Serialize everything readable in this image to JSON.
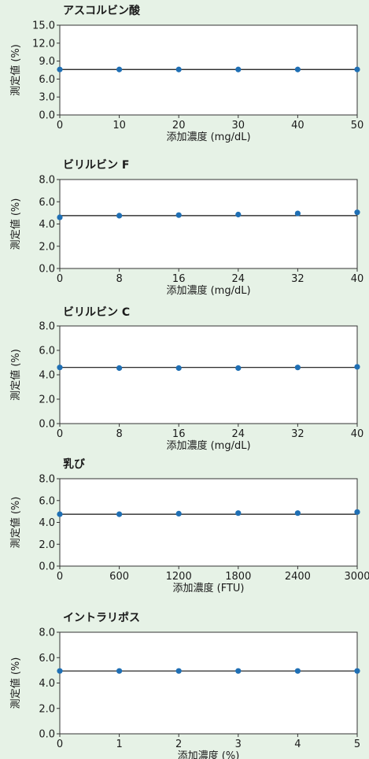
{
  "chart_data": [
    {
      "type": "scatter",
      "title": "アスコルビン酸",
      "xlabel": "添加濃度 (mg/dL)",
      "ylabel": "測定値 (%)",
      "x": [
        0,
        10,
        20,
        30,
        40,
        50
      ],
      "y": [
        7.6,
        7.6,
        7.6,
        7.6,
        7.6,
        7.6
      ],
      "reference": 7.6,
      "xlim": [
        0,
        50
      ],
      "ylim": [
        0,
        15
      ],
      "xticks": [
        0,
        10,
        20,
        30,
        40,
        50
      ],
      "yticks": [
        0,
        3,
        6,
        9,
        12,
        15
      ],
      "xtick_labels": [
        "0",
        "10",
        "20",
        "30",
        "40",
        "50"
      ],
      "ytick_labels": [
        "0.0",
        "3.0",
        "6.0",
        "9.0",
        "12.0",
        "15.0"
      ]
    },
    {
      "type": "scatter",
      "title": "ビリルビン F",
      "xlabel": "添加濃度 (mg/dL)",
      "ylabel": "測定値 (%)",
      "x": [
        0,
        8,
        16,
        24,
        32,
        40
      ],
      "y": [
        4.6,
        4.75,
        4.8,
        4.85,
        4.95,
        5.05
      ],
      "reference": 4.75,
      "xlim": [
        0,
        40
      ],
      "ylim": [
        0,
        8
      ],
      "xticks": [
        0,
        8,
        16,
        24,
        32,
        40
      ],
      "yticks": [
        0,
        2,
        4,
        6,
        8
      ],
      "xtick_labels": [
        "0",
        "8",
        "16",
        "24",
        "32",
        "40"
      ],
      "ytick_labels": [
        "0.0",
        "2.0",
        "4.0",
        "6.0",
        "8.0"
      ]
    },
    {
      "type": "scatter",
      "title": "ビリルビン C",
      "xlabel": "添加濃度 (mg/dL)",
      "ylabel": "測定値 (%)",
      "x": [
        0,
        8,
        16,
        24,
        32,
        40
      ],
      "y": [
        4.6,
        4.55,
        4.55,
        4.55,
        4.6,
        4.65
      ],
      "reference": 4.6,
      "xlim": [
        0,
        40
      ],
      "ylim": [
        0,
        8
      ],
      "xticks": [
        0,
        8,
        16,
        24,
        32,
        40
      ],
      "yticks": [
        0,
        2,
        4,
        6,
        8
      ],
      "xtick_labels": [
        "0",
        "8",
        "16",
        "24",
        "32",
        "40"
      ],
      "ytick_labels": [
        "0.0",
        "2.0",
        "4.0",
        "6.0",
        "8.0"
      ]
    },
    {
      "type": "scatter",
      "title": "乳び",
      "xlabel": "添加濃度 (FTU)",
      "ylabel": "測定値 (%)",
      "x": [
        0,
        600,
        1200,
        1800,
        2400,
        3000
      ],
      "y": [
        4.75,
        4.75,
        4.8,
        4.85,
        4.85,
        4.95
      ],
      "reference": 4.75,
      "xlim": [
        0,
        3000
      ],
      "ylim": [
        0,
        8
      ],
      "xticks": [
        0,
        600,
        1200,
        1800,
        2400,
        3000
      ],
      "yticks": [
        0,
        2,
        4,
        6,
        8
      ],
      "xtick_labels": [
        "0",
        "600",
        "1200",
        "1800",
        "2400",
        "3000"
      ],
      "ytick_labels": [
        "0.0",
        "2.0",
        "4.0",
        "6.0",
        "8.0"
      ]
    },
    {
      "type": "scatter",
      "title": "イントラリポス",
      "xlabel": "添加濃度 (%)",
      "ylabel": "測定値 (%)",
      "x": [
        0,
        1,
        2,
        3,
        4,
        5
      ],
      "y": [
        4.95,
        4.95,
        4.95,
        4.95,
        4.95,
        4.95
      ],
      "reference": 4.95,
      "xlim": [
        0,
        5
      ],
      "ylim": [
        0,
        8
      ],
      "xticks": [
        0,
        1,
        2,
        3,
        4,
        5
      ],
      "yticks": [
        0,
        2,
        4,
        6,
        8
      ],
      "xtick_labels": [
        "0",
        "1",
        "2",
        "3",
        "4",
        "5"
      ],
      "ytick_labels": [
        "0.0",
        "2.0",
        "4.0",
        "6.0",
        "8.0"
      ]
    }
  ]
}
